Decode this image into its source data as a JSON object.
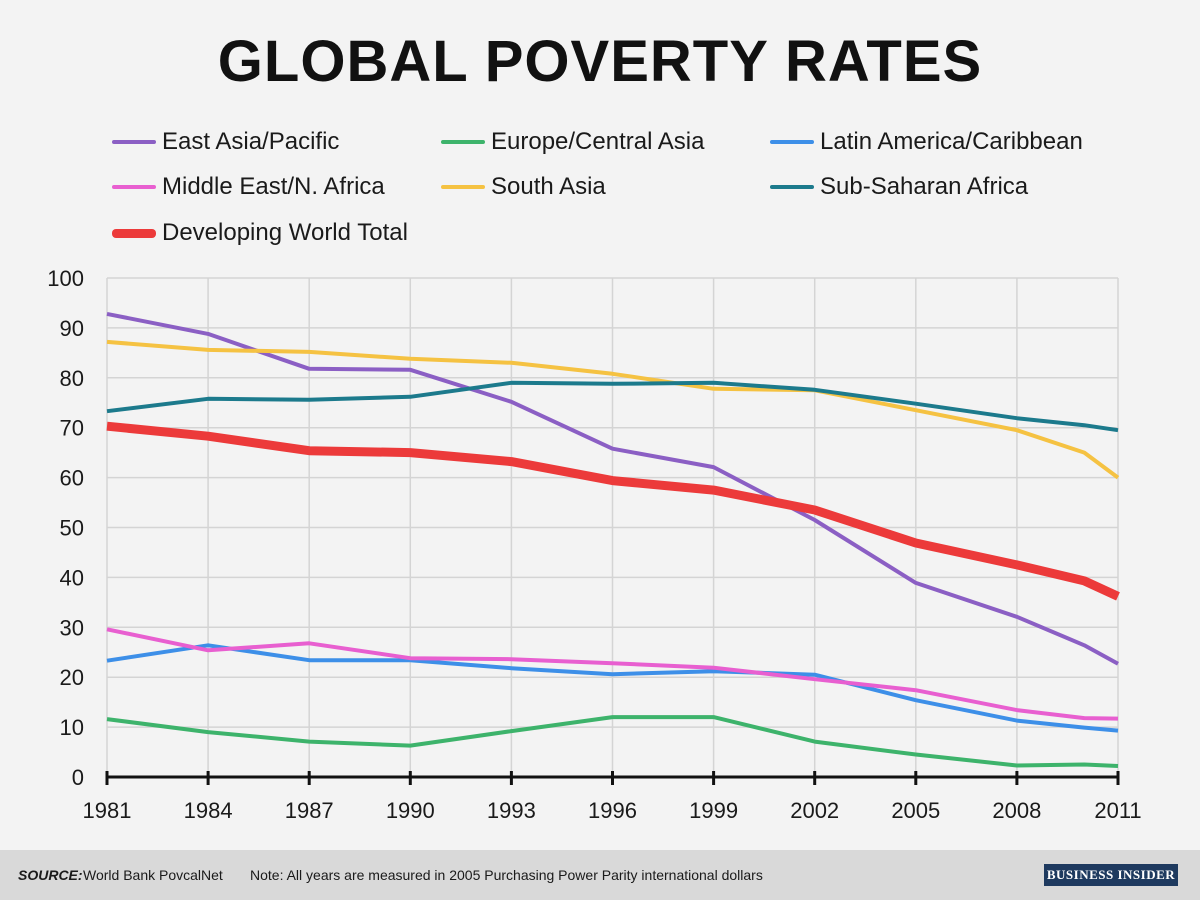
{
  "chart_data": {
    "type": "line",
    "title": "GLOBAL POVERTY RATES",
    "xlabel": "",
    "ylabel": "",
    "x": [
      1981,
      1984,
      1987,
      1990,
      1993,
      1996,
      1999,
      2002,
      2005,
      2008,
      2010,
      2011
    ],
    "x_tick_labels": [
      "1981",
      "1984",
      "1987",
      "1990",
      "1993",
      "1996",
      "1999",
      "2002",
      "2005",
      "2008",
      "2011"
    ],
    "x_tick_values": [
      1981,
      1984,
      1987,
      1990,
      1993,
      1996,
      1999,
      2002,
      2005,
      2008,
      2011
    ],
    "y_tick_labels": [
      "0",
      "10",
      "20",
      "30",
      "40",
      "50",
      "60",
      "70",
      "80",
      "90",
      "100"
    ],
    "xlim": [
      1981,
      2011
    ],
    "ylim": [
      0,
      100
    ],
    "grid": true,
    "legend_position": "top",
    "series": [
      {
        "name": "East Asia/Pacific",
        "color": "#8b5fc4",
        "values": [
          92.8,
          88.8,
          81.8,
          81.6,
          75.2,
          65.8,
          62.1,
          51.5,
          38.9,
          32.1,
          26.4,
          22.7
        ]
      },
      {
        "name": "Europe/Central Asia",
        "color": "#3db36b",
        "values": [
          11.6,
          9.0,
          7.1,
          6.3,
          9.2,
          12.0,
          12.0,
          7.1,
          4.5,
          2.3,
          2.5,
          2.2
        ]
      },
      {
        "name": "Latin America/Caribbean",
        "color": "#3d8fe8",
        "values": [
          23.3,
          26.4,
          23.4,
          23.4,
          21.8,
          20.6,
          21.2,
          20.5,
          15.4,
          11.3,
          9.9,
          9.3
        ]
      },
      {
        "name": "Middle East/N. Africa",
        "color": "#e85fd0",
        "values": [
          29.6,
          25.4,
          26.8,
          23.8,
          23.6,
          22.8,
          21.9,
          19.6,
          17.4,
          13.4,
          11.8,
          11.7
        ]
      },
      {
        "name": "South Asia",
        "color": "#f5c242",
        "values": [
          87.2,
          85.6,
          85.2,
          83.8,
          83.0,
          80.8,
          77.8,
          77.5,
          73.5,
          69.5,
          65.0,
          60.0
        ]
      },
      {
        "name": "Sub-Saharan Africa",
        "color": "#1c7a8c",
        "values": [
          73.3,
          75.8,
          75.6,
          76.2,
          79.0,
          78.8,
          79.0,
          77.6,
          74.8,
          71.9,
          70.5,
          69.5
        ]
      },
      {
        "name": "Developing World Total",
        "color": "#ec3a3a",
        "values": [
          70.3,
          68.3,
          65.4,
          65.0,
          63.2,
          59.4,
          57.5,
          53.5,
          46.9,
          42.5,
          39.3,
          36.2
        ]
      }
    ]
  },
  "footer": {
    "source_key": "SOURCE:",
    "source_value": "World Bank PovcalNet",
    "note": "Note: All years are measured in 2005 Purchasing Power Parity international dollars",
    "brand": "BUSINESS INSIDER"
  }
}
